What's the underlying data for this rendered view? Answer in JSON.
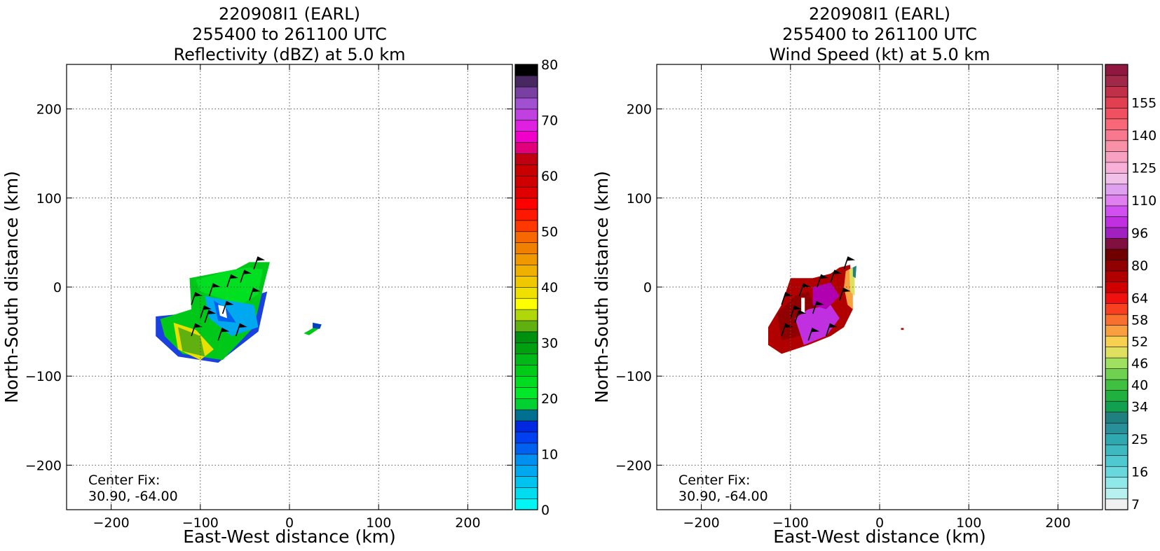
{
  "chart_data": [
    {
      "type": "heatmap",
      "title_lines": [
        "220908I1 (EARL)",
        "255400 to 261100 UTC",
        "Reflectivity (dBZ) at 5.0 km"
      ],
      "xlabel": "East-West distance (km)",
      "ylabel": "North-South distance (km)",
      "xlim": [
        -250,
        250
      ],
      "ylim": [
        -250,
        250
      ],
      "xticks": [
        -200,
        -100,
        0,
        100,
        200
      ],
      "yticks": [
        -200,
        -100,
        0,
        100,
        200
      ],
      "grid": true,
      "annotation_lines": [
        "Center Fix:",
        "30.90, -64.00"
      ],
      "colorbar": {
        "min": 0,
        "max": 80,
        "tick_values": [
          0,
          10,
          20,
          30,
          40,
          50,
          60,
          70,
          80
        ],
        "tick_labels": [
          "0",
          "10",
          "20",
          "30",
          "40",
          "50",
          "60",
          "70",
          "80"
        ],
        "colors": [
          "#00f5f5",
          "#00dcf0",
          "#00c3f0",
          "#00a8f0",
          "#0090f0",
          "#0060f0",
          "#0040f0",
          "#0028e0",
          "#007090",
          "#00d030",
          "#00e828",
          "#00dc20",
          "#00cc18",
          "#00b818",
          "#00a010",
          "#009010",
          "#60b010",
          "#b0d808",
          "#ffff00",
          "#f0e000",
          "#f0c800",
          "#f0b000",
          "#f09800",
          "#f08000",
          "#f86800",
          "#ff3800",
          "#ff1800",
          "#ff0000",
          "#e00000",
          "#d00000",
          "#c80000",
          "#c00010",
          "#e0007a",
          "#f000c8",
          "#e020e0",
          "#c040e0",
          "#a050d0",
          "#7840a0",
          "#482860",
          "#000000"
        ]
      },
      "data_regions": [
        {
          "name": "main echo mass",
          "approx_x_km": [
            -150,
            -25
          ],
          "approx_y_km": [
            -80,
            30
          ],
          "range_dBZ": [
            10,
            38
          ]
        },
        {
          "name": "small cell",
          "approx_x_km": [
            15,
            35
          ],
          "approx_y_km": [
            -53,
            -42
          ],
          "range_dBZ": [
            10,
            22
          ]
        }
      ]
    },
    {
      "type": "heatmap",
      "title_lines": [
        "220908I1 (EARL)",
        "255400 to 261100 UTC",
        "Wind Speed (kt) at 5.0 km"
      ],
      "xlabel": "East-West distance (km)",
      "ylabel": "North-South distance (km)",
      "xlim": [
        -250,
        250
      ],
      "ylim": [
        -250,
        250
      ],
      "xticks": [
        -200,
        -100,
        0,
        100,
        200
      ],
      "yticks": [
        -200,
        -100,
        0,
        100,
        200
      ],
      "grid": true,
      "annotation_lines": [
        "Center Fix:",
        "30.90, -64.00"
      ],
      "colorbar": {
        "tick_labels": [
          "7",
          "16",
          "25",
          "34",
          "40",
          "46",
          "52",
          "58",
          "64",
          "80",
          "96",
          "110",
          "125",
          "140",
          "155"
        ],
        "tick_bins": [
          0,
          3,
          6,
          9,
          11,
          13,
          15,
          17,
          19,
          22,
          25,
          28,
          31,
          34,
          37
        ],
        "colors": [
          "#f0f0f0",
          "#b8f0f0",
          "#90e8e8",
          "#68d8dc",
          "#50c8d0",
          "#40b8c0",
          "#30a8b0",
          "#289098",
          "#208080",
          "#10a050",
          "#20b040",
          "#40c040",
          "#70d050",
          "#a0e060",
          "#e0e060",
          "#f8d050",
          "#f8a040",
          "#f87030",
          "#f84020",
          "#f01010",
          "#d00000",
          "#b00000",
          "#900000",
          "#700000",
          "#801040",
          "#a020c0",
          "#c030e0",
          "#d050f0",
          "#e080f0",
          "#e0a0f0",
          "#f0c0e8",
          "#f8b0d8",
          "#f8a0c0",
          "#f890a8",
          "#f87890",
          "#f86878",
          "#f05060",
          "#e04050",
          "#c03048",
          "#a02848",
          "#901840"
        ]
      },
      "data_regions": [
        {
          "name": "main wind mass",
          "approx_x_km": [
            -125,
            -28
          ],
          "approx_y_km": [
            -75,
            25
          ],
          "range_kt": [
            46,
            80
          ]
        },
        {
          "name": "eastern high-wind edge",
          "approx_x_km": [
            -50,
            -30
          ],
          "approx_y_km": [
            -35,
            22
          ],
          "range_kt": [
            16,
            90
          ]
        },
        {
          "name": "small cell",
          "approx_x_km": [
            24,
            27
          ],
          "approx_y_km": [
            -48,
            -46
          ],
          "range_kt": [
            58,
            64
          ]
        }
      ]
    }
  ]
}
